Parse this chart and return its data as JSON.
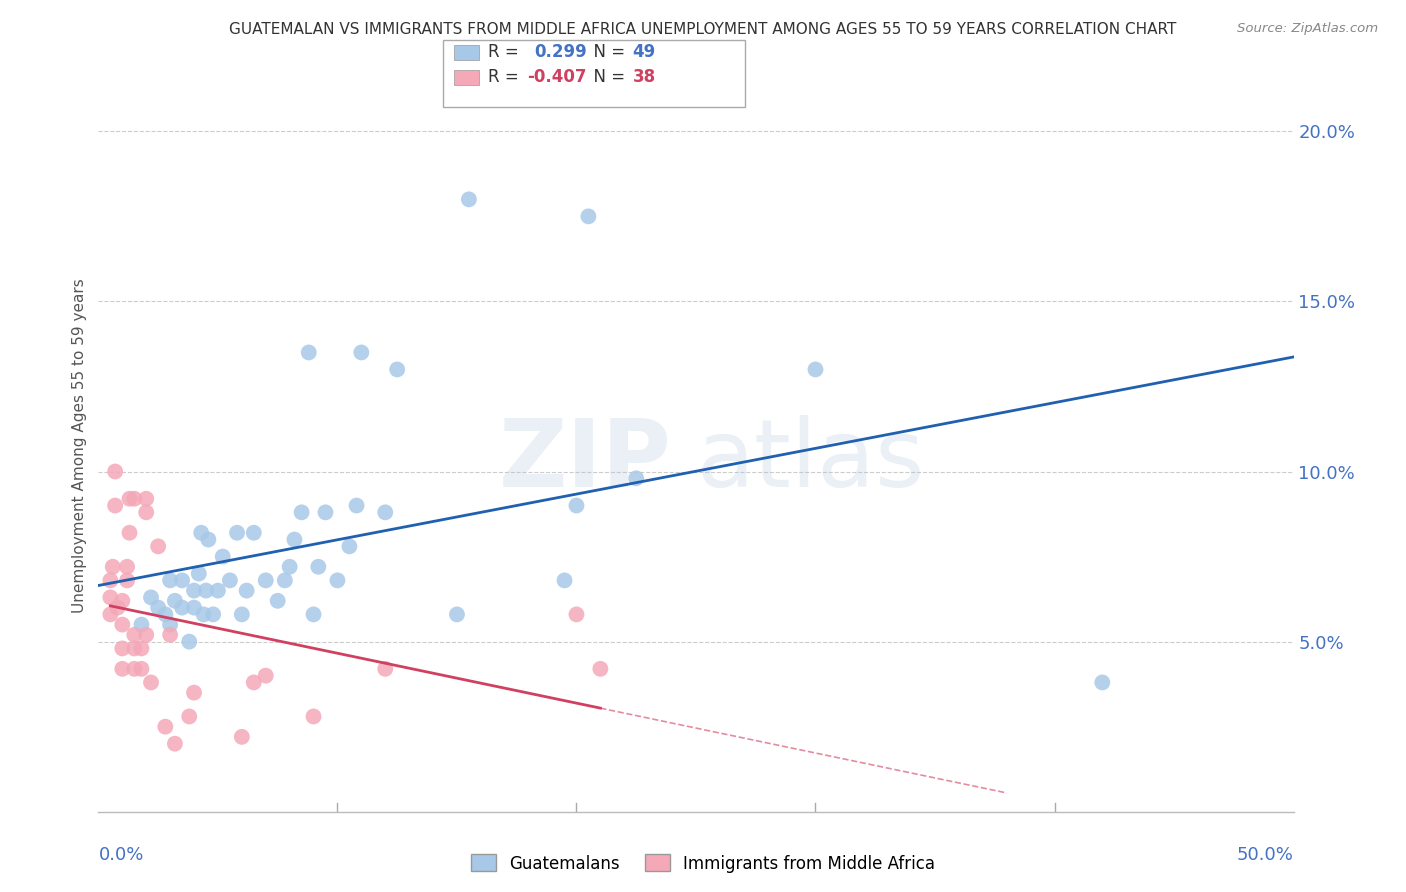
{
  "title": "GUATEMALAN VS IMMIGRANTS FROM MIDDLE AFRICA UNEMPLOYMENT AMONG AGES 55 TO 59 YEARS CORRELATION CHART",
  "source": "Source: ZipAtlas.com",
  "ylabel": "Unemployment Among Ages 55 to 59 years",
  "ytick_values": [
    0.05,
    0.1,
    0.15,
    0.2
  ],
  "ytick_labels": [
    "5.0%",
    "10.0%",
    "15.0%",
    "20.0%"
  ],
  "xlim": [
    0.0,
    0.5
  ],
  "ylim": [
    0.0,
    0.215
  ],
  "guatemalan_color": "#a8c8e8",
  "immigrant_color": "#f4a8b8",
  "trendline_guatemalan_color": "#2060b0",
  "trendline_immigrant_color": "#d04060",
  "watermark_zip": "ZIP",
  "watermark_atlas": "atlas",
  "guatemalan_x": [
    0.018,
    0.022,
    0.025,
    0.028,
    0.03,
    0.03,
    0.032,
    0.035,
    0.035,
    0.038,
    0.04,
    0.04,
    0.042,
    0.043,
    0.044,
    0.045,
    0.046,
    0.048,
    0.05,
    0.052,
    0.055,
    0.058,
    0.06,
    0.062,
    0.065,
    0.07,
    0.075,
    0.078,
    0.08,
    0.082,
    0.085,
    0.088,
    0.09,
    0.092,
    0.095,
    0.1,
    0.105,
    0.108,
    0.11,
    0.12,
    0.125,
    0.15,
    0.155,
    0.195,
    0.2,
    0.205,
    0.225,
    0.3,
    0.42
  ],
  "guatemalan_y": [
    0.055,
    0.063,
    0.06,
    0.058,
    0.055,
    0.068,
    0.062,
    0.06,
    0.068,
    0.05,
    0.06,
    0.065,
    0.07,
    0.082,
    0.058,
    0.065,
    0.08,
    0.058,
    0.065,
    0.075,
    0.068,
    0.082,
    0.058,
    0.065,
    0.082,
    0.068,
    0.062,
    0.068,
    0.072,
    0.08,
    0.088,
    0.135,
    0.058,
    0.072,
    0.088,
    0.068,
    0.078,
    0.09,
    0.135,
    0.088,
    0.13,
    0.058,
    0.18,
    0.068,
    0.09,
    0.175,
    0.098,
    0.13,
    0.038
  ],
  "immigrant_x": [
    0.005,
    0.005,
    0.005,
    0.006,
    0.007,
    0.007,
    0.008,
    0.01,
    0.01,
    0.01,
    0.01,
    0.012,
    0.012,
    0.013,
    0.013,
    0.015,
    0.015,
    0.015,
    0.015,
    0.018,
    0.018,
    0.02,
    0.02,
    0.02,
    0.022,
    0.025,
    0.028,
    0.03,
    0.032,
    0.038,
    0.04,
    0.06,
    0.065,
    0.07,
    0.09,
    0.12,
    0.2,
    0.21
  ],
  "immigrant_y": [
    0.058,
    0.063,
    0.068,
    0.072,
    0.09,
    0.1,
    0.06,
    0.042,
    0.048,
    0.055,
    0.062,
    0.068,
    0.072,
    0.082,
    0.092,
    0.042,
    0.048,
    0.052,
    0.092,
    0.042,
    0.048,
    0.052,
    0.088,
    0.092,
    0.038,
    0.078,
    0.025,
    0.052,
    0.02,
    0.028,
    0.035,
    0.022,
    0.038,
    0.04,
    0.028,
    0.042,
    0.058,
    0.042
  ]
}
